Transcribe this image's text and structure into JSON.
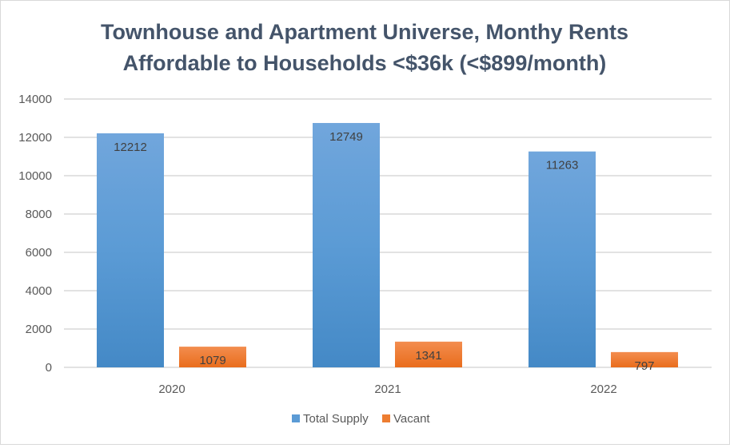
{
  "chart_data": {
    "type": "bar",
    "title_lines": [
      "Townhouse and Apartment Universe, Monthy Rents",
      "Affordable to Households <$36k (<$899/month)"
    ],
    "categories": [
      "2020",
      "2021",
      "2022"
    ],
    "series": [
      {
        "name": "Total Supply",
        "values": [
          12212,
          12749,
          11263
        ],
        "color": "#5b9bd5"
      },
      {
        "name": "Vacant",
        "values": [
          1079,
          1341,
          797
        ],
        "color": "#ed7d31"
      }
    ],
    "ylim": [
      0,
      14000
    ],
    "yticks": [
      "0",
      "2000",
      "4000",
      "6000",
      "8000",
      "10000",
      "12000",
      "14000"
    ],
    "grid": true,
    "legend": "bottom",
    "data_labels": true
  }
}
